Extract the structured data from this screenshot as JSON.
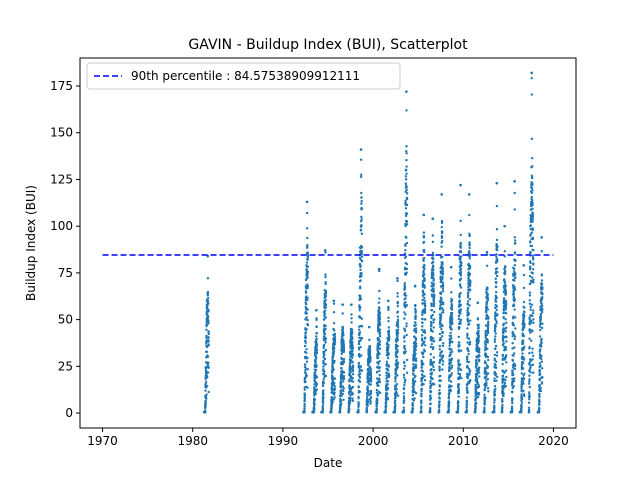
{
  "chart_data": {
    "type": "scatter",
    "title": "GAVIN - Buildup Index (BUI), Scatterplot",
    "xlabel": "Date",
    "ylabel": "Buildup Index (BUI)",
    "x_axis_type": "date (year)",
    "xlim": [
      1967.5,
      2022.5
    ],
    "ylim": [
      -8,
      190
    ],
    "x_ticks": [
      1970,
      1980,
      1990,
      2000,
      2010,
      2020
    ],
    "y_ticks": [
      0,
      25,
      50,
      75,
      100,
      125,
      150,
      175
    ],
    "grid": false,
    "legend_position": "top-left",
    "colors": {
      "points": "#1f77b4",
      "reference_line": "#0000ff",
      "axes": "#000000"
    },
    "reference_line": {
      "label": "90th percentile : 84.57538909912111",
      "value": 84.57538909912111,
      "x_range": [
        1970,
        2020
      ],
      "style": "dashed"
    },
    "series": [
      {
        "fire_seasons": [
          {
            "year": 1981,
            "max": 84
          },
          {
            "year": 1992,
            "max": 113
          },
          {
            "year": 1993,
            "max": 55
          },
          {
            "year": 1994,
            "max": 87
          },
          {
            "year": 1995,
            "max": 60
          },
          {
            "year": 1996,
            "max": 58
          },
          {
            "year": 1997,
            "max": 58
          },
          {
            "year": 1998,
            "max": 141
          },
          {
            "year": 1999,
            "max": 46
          },
          {
            "year": 2000,
            "max": 77
          },
          {
            "year": 2001,
            "max": 60
          },
          {
            "year": 2002,
            "max": 72
          },
          {
            "year": 2003,
            "max": 172
          },
          {
            "year": 2004,
            "max": 68
          },
          {
            "year": 2005,
            "max": 106
          },
          {
            "year": 2006,
            "max": 104
          },
          {
            "year": 2007,
            "max": 117
          },
          {
            "year": 2008,
            "max": 78
          },
          {
            "year": 2009,
            "max": 122
          },
          {
            "year": 2010,
            "max": 117
          },
          {
            "year": 2011,
            "max": 59
          },
          {
            "year": 2012,
            "max": 86
          },
          {
            "year": 2013,
            "max": 123
          },
          {
            "year": 2014,
            "max": 100
          },
          {
            "year": 2015,
            "max": 124
          },
          {
            "year": 2016,
            "max": 79
          },
          {
            "year": 2017,
            "max": 182
          },
          {
            "year": 2018,
            "max": 94
          }
        ]
      }
    ]
  }
}
